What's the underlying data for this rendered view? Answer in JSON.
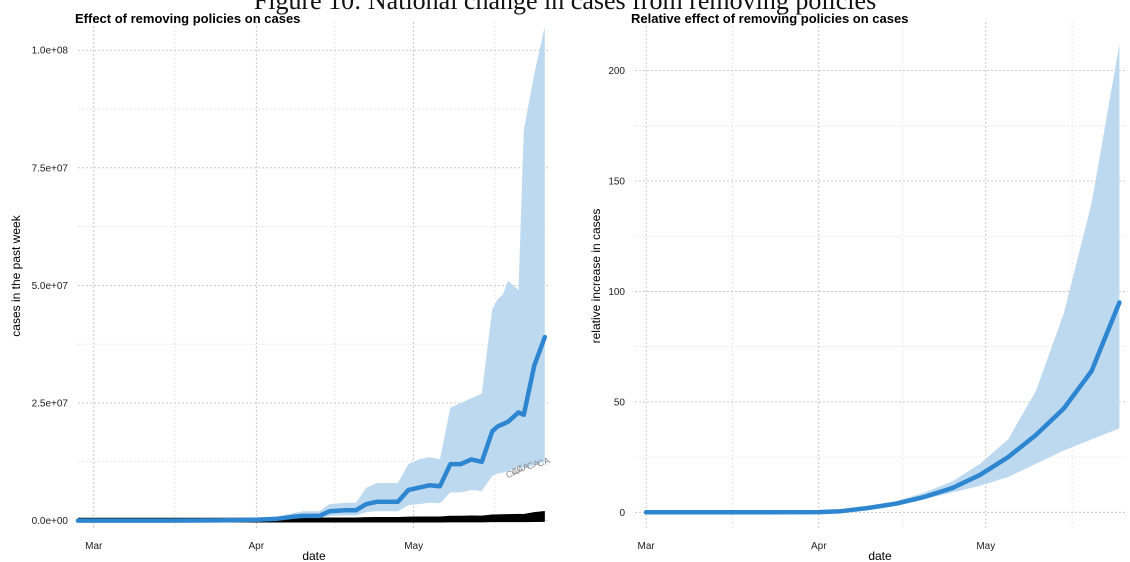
{
  "figure_caption": "Figure 10: National change in cases from removing policies",
  "chart_data": [
    {
      "type": "line",
      "title": "Effect of removing policies on cases",
      "xlabel": "date",
      "ylabel": "cases in the past week",
      "x_ticks": [
        "Mar",
        "Apr",
        "May"
      ],
      "x_tick_dates": [
        "2020-03-01",
        "2020-04-01",
        "2020-05-01"
      ],
      "xlim": [
        "2020-02-27",
        "2020-05-27"
      ],
      "y_ticks": [
        0,
        25000000,
        50000000,
        75000000,
        100000000
      ],
      "y_tick_labels": [
        "0.0e+00",
        "2.5e+07",
        "5.0e+07",
        "7.5e+07",
        "1.0e+08"
      ],
      "ylim": [
        -2000000,
        106000000
      ],
      "grid": true,
      "series": [
        {
          "color": "#2e86d1",
          "x": [
            "2020-02-27",
            "2020-03-05",
            "2020-03-15",
            "2020-03-25",
            "2020-04-01",
            "2020-04-05",
            "2020-04-08",
            "2020-04-10",
            "2020-04-13",
            "2020-04-15",
            "2020-04-18",
            "2020-04-20",
            "2020-04-22",
            "2020-04-24",
            "2020-04-26",
            "2020-04-28",
            "2020-04-30",
            "2020-05-02",
            "2020-05-04",
            "2020-05-06",
            "2020-05-08",
            "2020-05-10",
            "2020-05-12",
            "2020-05-14",
            "2020-05-16",
            "2020-05-17",
            "2020-05-18",
            "2020-05-19",
            "2020-05-20",
            "2020-05-21",
            "2020-05-22",
            "2020-05-24",
            "2020-05-26"
          ],
          "y": [
            0,
            0,
            0,
            50000,
            200000,
            400000,
            800000,
            1000000,
            1000000,
            2000000,
            2200000,
            2200000,
            3500000,
            4000000,
            4000000,
            4000000,
            6500000,
            7000000,
            7500000,
            7300000,
            12000000,
            12000000,
            13000000,
            12500000,
            19000000,
            20000000,
            20500000,
            21000000,
            22000000,
            23000000,
            22500000,
            33000000,
            39000000
          ],
          "lower": [
            0,
            0,
            0,
            20000,
            100000,
            200000,
            400000,
            500000,
            500000,
            1000000,
            1100000,
            1100000,
            1800000,
            2000000,
            2000000,
            2000000,
            3300000,
            3500000,
            3800000,
            3700000,
            6000000,
            6000000,
            6500000,
            6300000,
            9500000,
            10000000,
            10200000,
            10500000,
            11000000,
            11500000,
            11200000,
            11800000,
            12500000
          ],
          "upper": [
            0,
            0,
            0,
            100000,
            400000,
            800000,
            1600000,
            2000000,
            2000000,
            3500000,
            3800000,
            3800000,
            7000000,
            8000000,
            8000000,
            8000000,
            12000000,
            13000000,
            13500000,
            13000000,
            24000000,
            25000000,
            26000000,
            27000000,
            45000000,
            47000000,
            48000000,
            51000000,
            50000000,
            49000000,
            83000000,
            95000000,
            105000000
          ]
        }
      ],
      "state_labels": [
        "CA",
        "CA",
        "CA",
        "CA",
        "CA"
      ]
    },
    {
      "type": "line",
      "title": "Relative effect of removing policies on cases",
      "xlabel": "date",
      "ylabel": "relative increase in cases",
      "x_ticks": [
        "Mar",
        "Apr",
        "May"
      ],
      "x_tick_dates": [
        "2020-03-01",
        "2020-04-01",
        "2020-05-01"
      ],
      "xlim": [
        "2020-02-28",
        "2020-05-26"
      ],
      "y_ticks": [
        0,
        50,
        100,
        150,
        200
      ],
      "ylim": [
        -8,
        222
      ],
      "grid": true,
      "series": [
        {
          "color": "#2e86d1",
          "x": [
            "2020-03-01",
            "2020-03-20",
            "2020-04-01",
            "2020-04-05",
            "2020-04-10",
            "2020-04-15",
            "2020-04-20",
            "2020-04-25",
            "2020-04-30",
            "2020-05-05",
            "2020-05-10",
            "2020-05-15",
            "2020-05-20",
            "2020-05-25"
          ],
          "y": [
            0,
            0,
            0.1,
            0.5,
            2,
            4,
            7,
            11,
            17,
            25,
            35,
            47,
            64,
            95
          ],
          "lower": [
            0,
            0,
            0.1,
            0.4,
            1.8,
            3.5,
            6,
            9,
            12,
            16,
            22,
            28,
            33,
            38
          ],
          "upper": [
            0,
            0,
            0.2,
            0.6,
            2.5,
            5,
            9,
            14,
            22,
            33,
            55,
            90,
            140,
            212
          ]
        }
      ]
    }
  ]
}
